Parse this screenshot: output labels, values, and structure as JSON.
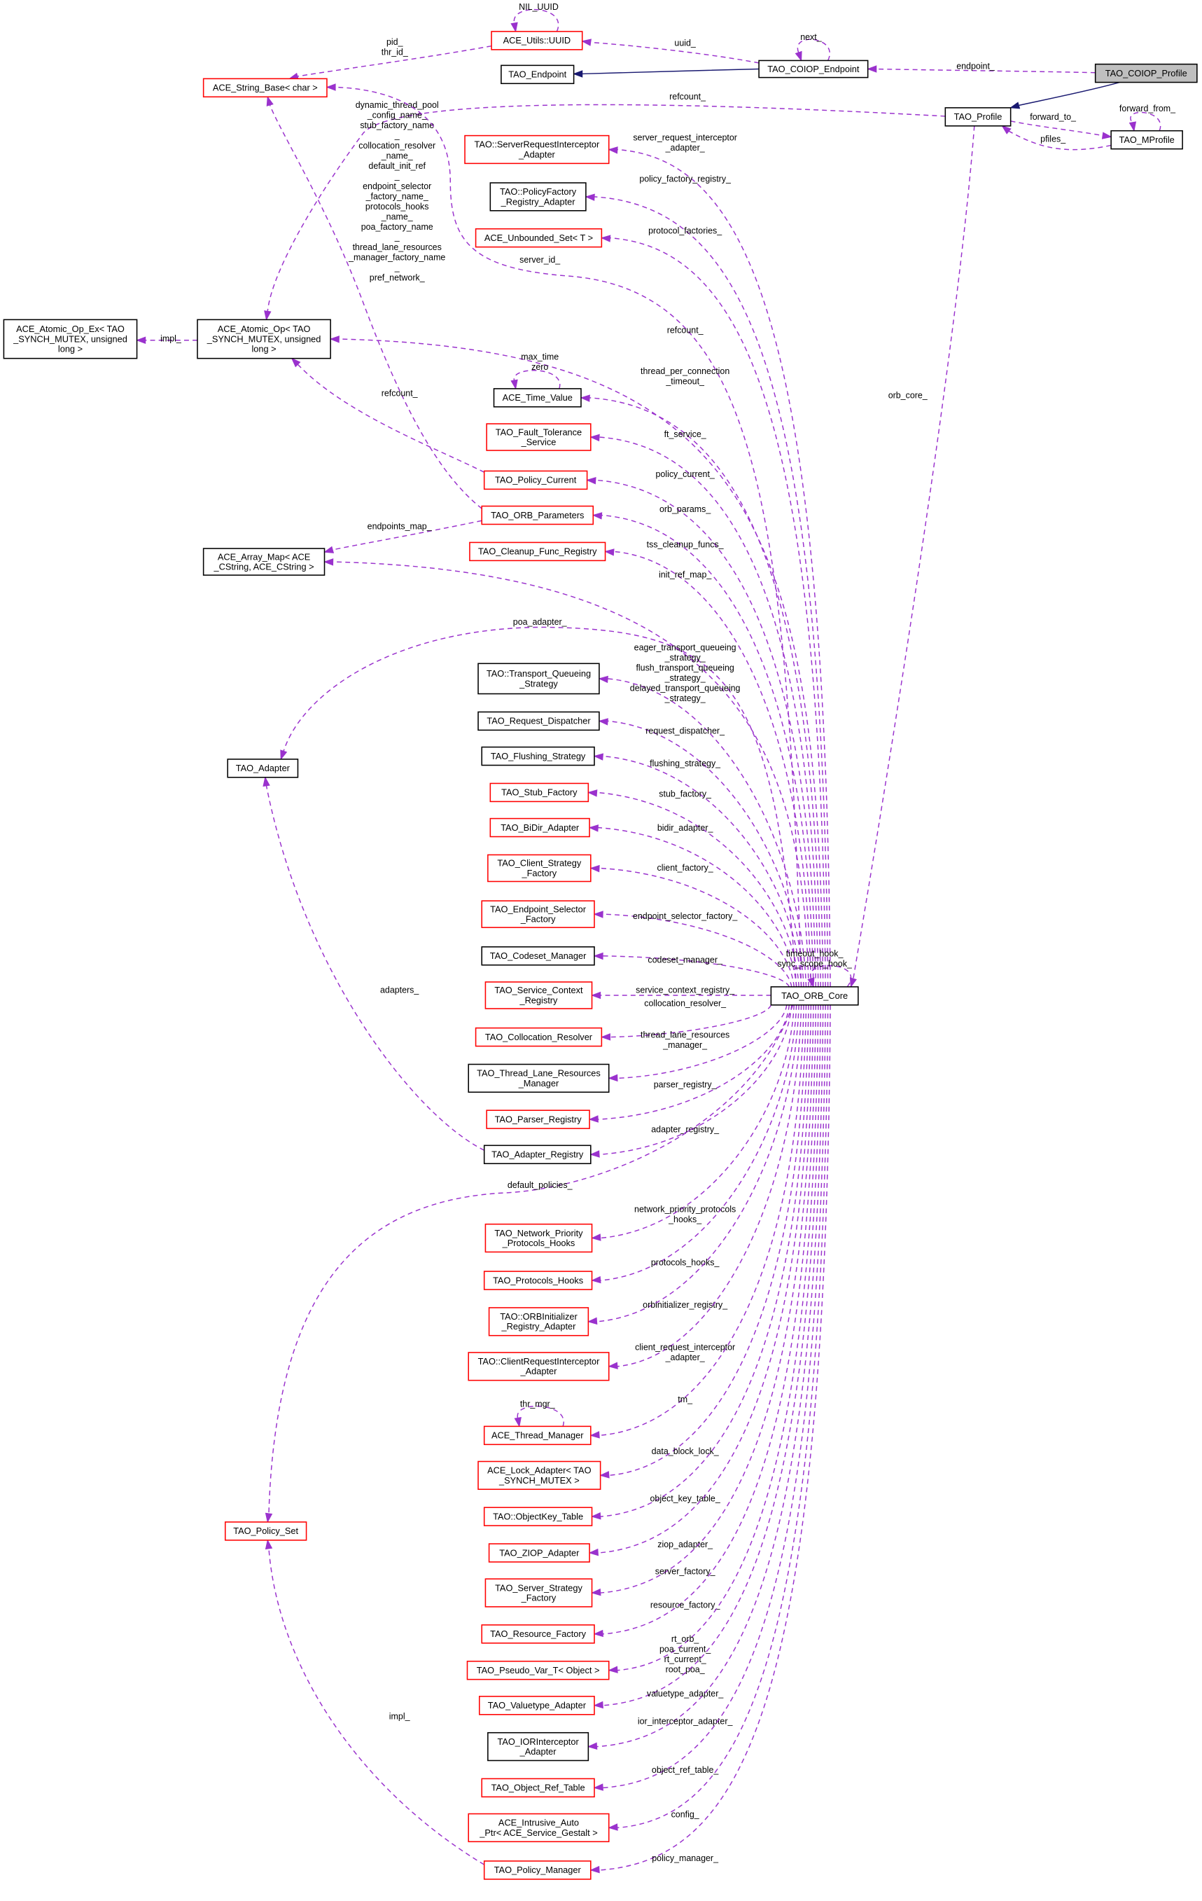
{
  "colors": {
    "usage_edge": "#9a32cd",
    "inheritance_edge": "#191970",
    "incomplete_node_border": "#ff0000",
    "complete_node_border": "#000000",
    "focus_node_fill": "#bfbfbf"
  },
  "nodes": {
    "coiop_prof": {
      "lines": [
        "TAO_COIOP_Profile"
      ],
      "style": "focus"
    },
    "coiop_ep": {
      "lines": [
        "TAO_COIOP_Endpoint"
      ],
      "style": "black"
    },
    "endpoint": {
      "lines": [
        "TAO_Endpoint"
      ],
      "style": "black"
    },
    "uuid": {
      "lines": [
        "ACE_Utils::UUID"
      ],
      "style": "red"
    },
    "stringbase": {
      "lines": [
        "ACE_String_Base< char >"
      ],
      "style": "red"
    },
    "profile": {
      "lines": [
        "TAO_Profile"
      ],
      "style": "black"
    },
    "mprofile": {
      "lines": [
        "TAO_MProfile"
      ],
      "style": "black"
    },
    "sria": {
      "lines": [
        "TAO::ServerRequestInterceptor",
        "_Adapter"
      ],
      "style": "red"
    },
    "pfra": {
      "lines": [
        "TAO::PolicyFactory",
        "_Registry_Adapter"
      ],
      "style": "black"
    },
    "unbounded": {
      "lines": [
        "ACE_Unbounded_Set< T >"
      ],
      "style": "red"
    },
    "atomic_ex": {
      "lines": [
        "ACE_Atomic_Op_Ex< TAO",
        "_SYNCH_MUTEX, unsigned",
        "long >"
      ],
      "style": "black"
    },
    "atomic": {
      "lines": [
        "ACE_Atomic_Op< TAO",
        "_SYNCH_MUTEX, unsigned",
        "long >"
      ],
      "style": "black"
    },
    "timevalue": {
      "lines": [
        "ACE_Time_Value"
      ],
      "style": "black"
    },
    "ft": {
      "lines": [
        "TAO_Fault_Tolerance",
        "_Service"
      ],
      "style": "red"
    },
    "policycur": {
      "lines": [
        "TAO_Policy_Current"
      ],
      "style": "red"
    },
    "orbparams": {
      "lines": [
        "TAO_ORB_Parameters"
      ],
      "style": "red"
    },
    "arraymap": {
      "lines": [
        "ACE_Array_Map< ACE",
        "_CString, ACE_CString >"
      ],
      "style": "black"
    },
    "cleanup": {
      "lines": [
        "TAO_Cleanup_Func_Registry"
      ],
      "style": "red"
    },
    "adapter": {
      "lines": [
        "TAO_Adapter"
      ],
      "style": "black"
    },
    "tqs": {
      "lines": [
        "TAO::Transport_Queueing",
        "_Strategy"
      ],
      "style": "black"
    },
    "reqdisp": {
      "lines": [
        "TAO_Request_Dispatcher"
      ],
      "style": "black"
    },
    "flushing": {
      "lines": [
        "TAO_Flushing_Strategy"
      ],
      "style": "black"
    },
    "stub": {
      "lines": [
        "TAO_Stub_Factory"
      ],
      "style": "red"
    },
    "bidir": {
      "lines": [
        "TAO_BiDir_Adapter"
      ],
      "style": "red"
    },
    "csf": {
      "lines": [
        "TAO_Client_Strategy",
        "_Factory"
      ],
      "style": "red"
    },
    "esf": {
      "lines": [
        "TAO_Endpoint_Selector",
        "_Factory"
      ],
      "style": "red"
    },
    "codeset": {
      "lines": [
        "TAO_Codeset_Manager"
      ],
      "style": "black"
    },
    "scr": {
      "lines": [
        "TAO_Service_Context",
        "_Registry"
      ],
      "style": "red"
    },
    "collres": {
      "lines": [
        "TAO_Collocation_Resolver"
      ],
      "style": "red"
    },
    "tlrm": {
      "lines": [
        "TAO_Thread_Lane_Resources",
        "_Manager"
      ],
      "style": "black"
    },
    "parser": {
      "lines": [
        "TAO_Parser_Registry"
      ],
      "style": "red"
    },
    "adreg": {
      "lines": [
        "TAO_Adapter_Registry"
      ],
      "style": "black"
    },
    "orbcore": {
      "lines": [
        "TAO_ORB_Core"
      ],
      "style": "black"
    },
    "nph": {
      "lines": [
        "TAO_Network_Priority",
        "_Protocols_Hooks"
      ],
      "style": "red"
    },
    "ph": {
      "lines": [
        "TAO_Protocols_Hooks"
      ],
      "style": "red"
    },
    "orbinit": {
      "lines": [
        "TAO::ORBInitializer",
        "_Registry_Adapter"
      ],
      "style": "red"
    },
    "cria": {
      "lines": [
        "TAO::ClientRequestInterceptor",
        "_Adapter"
      ],
      "style": "red"
    },
    "thrmgr": {
      "lines": [
        "ACE_Thread_Manager"
      ],
      "style": "red"
    },
    "lockad": {
      "lines": [
        "ACE_Lock_Adapter< TAO",
        "_SYNCH_MUTEX >"
      ],
      "style": "red"
    },
    "okt": {
      "lines": [
        "TAO::ObjectKey_Table"
      ],
      "style": "red"
    },
    "ziop": {
      "lines": [
        "TAO_ZIOP_Adapter"
      ],
      "style": "red"
    },
    "ssf": {
      "lines": [
        "TAO_Server_Strategy",
        "_Factory"
      ],
      "style": "red"
    },
    "rf": {
      "lines": [
        "TAO_Resource_Factory"
      ],
      "style": "red"
    },
    "pvt": {
      "lines": [
        "TAO_Pseudo_Var_T< Object >"
      ],
      "style": "red"
    },
    "vta": {
      "lines": [
        "TAO_Valuetype_Adapter"
      ],
      "style": "red"
    },
    "iora": {
      "lines": [
        "TAO_IORInterceptor",
        "_Adapter"
      ],
      "style": "black"
    },
    "ort": {
      "lines": [
        "TAO_Object_Ref_Table"
      ],
      "style": "red"
    },
    "iap": {
      "lines": [
        "ACE_Intrusive_Auto",
        "_Ptr< ACE_Service_Gestalt >"
      ],
      "style": "red"
    },
    "pm": {
      "lines": [
        "TAO_Policy_Manager"
      ],
      "style": "red"
    },
    "policyset": {
      "lines": [
        "TAO_Policy_Set"
      ],
      "style": "red"
    }
  },
  "edges": [
    {
      "from": "coiop_prof",
      "to": "coiop_ep",
      "kind": "usage",
      "label": [
        "endpoint_"
      ]
    },
    {
      "from": "coiop_prof",
      "to": "profile",
      "kind": "inheritance",
      "label": []
    },
    {
      "from": "coiop_ep",
      "to": "endpoint",
      "kind": "inheritance",
      "label": []
    },
    {
      "from": "coiop_ep",
      "to": "uuid",
      "kind": "usage",
      "label": [
        "uuid_"
      ]
    },
    {
      "from": "coiop_ep",
      "to": "coiop_ep",
      "kind": "usage",
      "label": [
        "next_"
      ]
    },
    {
      "from": "uuid",
      "to": "uuid",
      "kind": "usage",
      "label": [
        "NIL_UUID"
      ]
    },
    {
      "from": "uuid",
      "to": "stringbase",
      "kind": "usage",
      "label": [
        "pid_",
        "thr_id_"
      ]
    },
    {
      "from": "profile",
      "to": "atomic",
      "kind": "usage",
      "label": [
        "refcount_"
      ]
    },
    {
      "from": "profile",
      "to": "mprofile",
      "kind": "usage",
      "label": [
        "forward_to_"
      ]
    },
    {
      "from": "mprofile",
      "to": "profile",
      "kind": "usage",
      "label": [
        "pfiles_"
      ]
    },
    {
      "from": "mprofile",
      "to": "mprofile",
      "kind": "usage",
      "label": [
        "forward_from_"
      ]
    },
    {
      "from": "profile",
      "to": "orbcore",
      "kind": "usage",
      "label": [
        "orb_core_"
      ]
    },
    {
      "from": "orbparams",
      "to": "stringbase",
      "kind": "usage",
      "label": [
        "dynamic_thread_pool",
        "_config_name_",
        "stub_factory_name",
        "_",
        "collocation_resolver",
        "_name_",
        "default_init_ref",
        "_",
        "endpoint_selector",
        "_factory_name_",
        "protocols_hooks",
        "_name_",
        "poa_factory_name",
        "_",
        "thread_lane_resources",
        "_manager_factory_name",
        "_",
        "pref_network_"
      ]
    },
    {
      "from": "orbcore",
      "to": "stringbase",
      "kind": "usage",
      "label": [
        "server_id_"
      ]
    },
    {
      "from": "orbcore",
      "to": "sria",
      "kind": "usage",
      "label": [
        "server_request_interceptor",
        "_adapter_"
      ]
    },
    {
      "from": "orbcore",
      "to": "pfra",
      "kind": "usage",
      "label": [
        "policy_factory_registry_"
      ]
    },
    {
      "from": "orbcore",
      "to": "unbounded",
      "kind": "usage",
      "label": [
        "protocol_factories_"
      ]
    },
    {
      "from": "orbcore",
      "to": "atomic",
      "kind": "usage",
      "label": [
        "refcount_"
      ]
    },
    {
      "from": "atomic",
      "to": "atomic_ex",
      "kind": "usage",
      "label": [
        "impl_"
      ]
    },
    {
      "from": "policycur",
      "to": "atomic",
      "kind": "usage",
      "label": [
        "refcount_"
      ]
    },
    {
      "from": "timevalue",
      "to": "timevalue",
      "kind": "usage",
      "label": [
        "max_time",
        "zero"
      ]
    },
    {
      "from": "orbcore",
      "to": "timevalue",
      "kind": "usage",
      "label": [
        "thread_per_connection",
        "_timeout_"
      ]
    },
    {
      "from": "orbcore",
      "to": "ft",
      "kind": "usage",
      "label": [
        "ft_service_"
      ]
    },
    {
      "from": "orbcore",
      "to": "policycur",
      "kind": "usage",
      "label": [
        "policy_current_"
      ]
    },
    {
      "from": "orbcore",
      "to": "orbparams",
      "kind": "usage",
      "label": [
        "orb_params_"
      ]
    },
    {
      "from": "orbparams",
      "to": "arraymap",
      "kind": "usage",
      "label": [
        "endpoints_map_"
      ]
    },
    {
      "from": "orbcore",
      "to": "cleanup",
      "kind": "usage",
      "label": [
        "tss_cleanup_funcs_"
      ]
    },
    {
      "from": "orbcore",
      "to": "arraymap",
      "kind": "usage",
      "label": [
        "init_ref_map_"
      ]
    },
    {
      "from": "orbcore",
      "to": "adapter",
      "kind": "usage",
      "label": [
        "poa_adapter_"
      ]
    },
    {
      "from": "orbcore",
      "to": "tqs",
      "kind": "usage",
      "label": [
        "eager_transport_queueing",
        "_strategy_",
        "flush_transport_queueing",
        "_strategy_",
        "delayed_transport_queueing",
        "_strategy_"
      ]
    },
    {
      "from": "orbcore",
      "to": "reqdisp",
      "kind": "usage",
      "label": [
        "request_dispatcher_"
      ]
    },
    {
      "from": "orbcore",
      "to": "flushing",
      "kind": "usage",
      "label": [
        "flushing_strategy_"
      ]
    },
    {
      "from": "orbcore",
      "to": "stub",
      "kind": "usage",
      "label": [
        "stub_factory_"
      ]
    },
    {
      "from": "orbcore",
      "to": "bidir",
      "kind": "usage",
      "label": [
        "bidir_adapter_"
      ]
    },
    {
      "from": "orbcore",
      "to": "csf",
      "kind": "usage",
      "label": [
        "client_factory_"
      ]
    },
    {
      "from": "orbcore",
      "to": "esf",
      "kind": "usage",
      "label": [
        "endpoint_selector_factory_"
      ]
    },
    {
      "from": "orbcore",
      "to": "codeset",
      "kind": "usage",
      "label": [
        "codeset_manager_"
      ]
    },
    {
      "from": "orbcore",
      "to": "orbcore",
      "kind": "usage",
      "label": [
        "timeout_hook_",
        "sync_scope_hook_"
      ]
    },
    {
      "from": "orbcore",
      "to": "scr",
      "kind": "usage",
      "label": [
        "service_context_registry_"
      ]
    },
    {
      "from": "orbcore",
      "to": "collres",
      "kind": "usage",
      "label": [
        "collocation_resolver_"
      ]
    },
    {
      "from": "orbcore",
      "to": "tlrm",
      "kind": "usage",
      "label": [
        "thread_lane_resources",
        "_manager_"
      ]
    },
    {
      "from": "orbcore",
      "to": "parser",
      "kind": "usage",
      "label": [
        "parser_registry_"
      ]
    },
    {
      "from": "orbcore",
      "to": "adreg",
      "kind": "usage",
      "label": [
        "adapter_registry_"
      ]
    },
    {
      "from": "adreg",
      "to": "adapter",
      "kind": "usage",
      "label": [
        "adapters_"
      ]
    },
    {
      "from": "orbcore",
      "to": "policyset",
      "kind": "usage",
      "label": [
        "default_policies_"
      ]
    },
    {
      "from": "orbcore",
      "to": "nph",
      "kind": "usage",
      "label": [
        "network_priority_protocols",
        "_hooks_"
      ]
    },
    {
      "from": "orbcore",
      "to": "ph",
      "kind": "usage",
      "label": [
        "protocols_hooks_"
      ]
    },
    {
      "from": "orbcore",
      "to": "orbinit",
      "kind": "usage",
      "label": [
        "orbinitializer_registry_"
      ]
    },
    {
      "from": "orbcore",
      "to": "cria",
      "kind": "usage",
      "label": [
        "client_request_interceptor",
        "_adapter_"
      ]
    },
    {
      "from": "orbcore",
      "to": "thrmgr",
      "kind": "usage",
      "label": [
        "tm_"
      ]
    },
    {
      "from": "thrmgr",
      "to": "thrmgr",
      "kind": "usage",
      "label": [
        "thr_mgr_"
      ]
    },
    {
      "from": "orbcore",
      "to": "lockad",
      "kind": "usage",
      "label": [
        "data_block_lock_"
      ]
    },
    {
      "from": "orbcore",
      "to": "okt",
      "kind": "usage",
      "label": [
        "object_key_table_"
      ]
    },
    {
      "from": "orbcore",
      "to": "ziop",
      "kind": "usage",
      "label": [
        "ziop_adapter_"
      ]
    },
    {
      "from": "orbcore",
      "to": "ssf",
      "kind": "usage",
      "label": [
        "server_factory_"
      ]
    },
    {
      "from": "orbcore",
      "to": "rf",
      "kind": "usage",
      "label": [
        "resource_factory_"
      ]
    },
    {
      "from": "orbcore",
      "to": "pvt",
      "kind": "usage",
      "label": [
        "rt_orb_",
        "poa_current_",
        "rt_current_",
        "root_poa_"
      ]
    },
    {
      "from": "orbcore",
      "to": "vta",
      "kind": "usage",
      "label": [
        "valuetype_adapter_"
      ]
    },
    {
      "from": "orbcore",
      "to": "iora",
      "kind": "usage",
      "label": [
        "ior_interceptor_adapter_"
      ]
    },
    {
      "from": "orbcore",
      "to": "ort",
      "kind": "usage",
      "label": [
        "object_ref_table_"
      ]
    },
    {
      "from": "orbcore",
      "to": "iap",
      "kind": "usage",
      "label": [
        "config_"
      ]
    },
    {
      "from": "orbcore",
      "to": "pm",
      "kind": "usage",
      "label": [
        "policy_manager_"
      ]
    },
    {
      "from": "pm",
      "to": "policyset",
      "kind": "usage",
      "label": [
        "impl_"
      ]
    }
  ]
}
